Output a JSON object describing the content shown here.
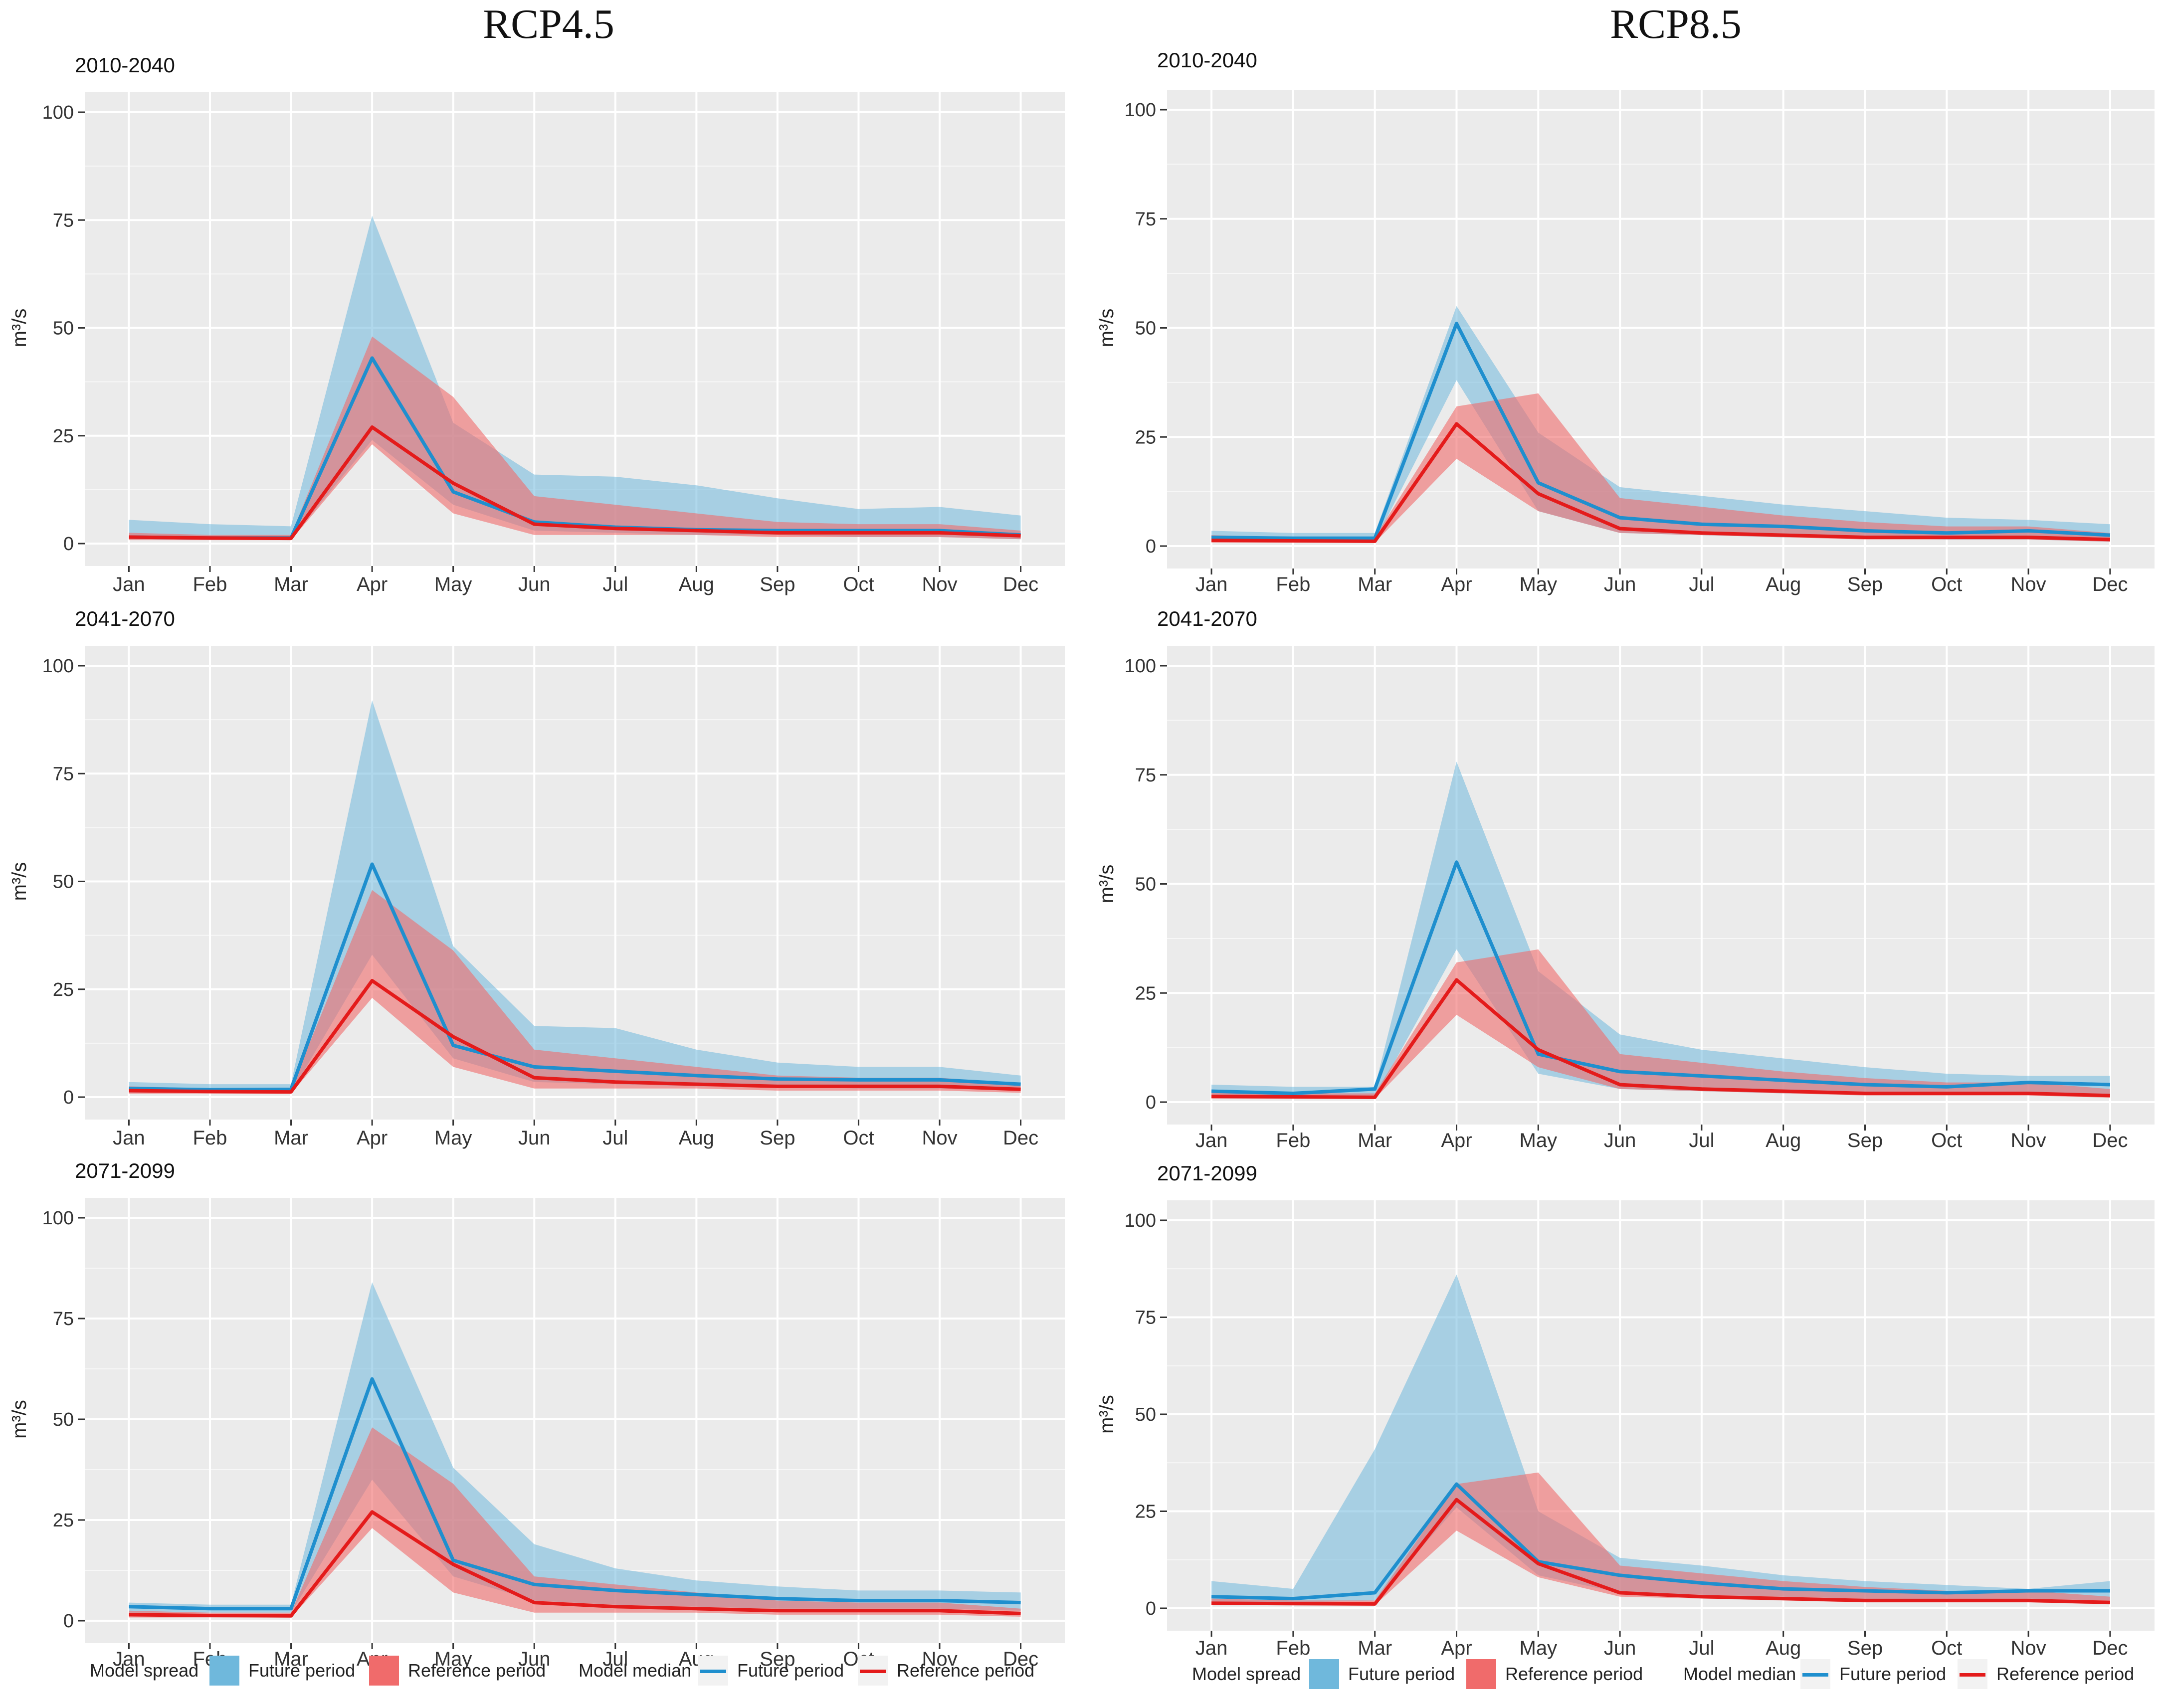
{
  "column_titles": [
    "RCP4.5",
    "RCP8.5"
  ],
  "legend": {
    "spread_title": "Model spread",
    "median_title": "Model median",
    "future_label": "Future period",
    "reference_label": "Reference period"
  },
  "colors": {
    "panel_bg": "#ebebeb",
    "grid": "#ffffff",
    "future_fill": "#6fb8dc",
    "reference_fill": "#f06b6b",
    "future_line": "#1f8fce",
    "reference_line": "#e41b1b"
  },
  "chart_data": [
    {
      "type": "area",
      "scenario": "RCP4.5",
      "title": "2010-2040",
      "ylabel": "m³/s",
      "ylim": [
        0,
        100
      ],
      "yticks": [
        0,
        25,
        50,
        75,
        100
      ],
      "categories": [
        "Jan",
        "Feb",
        "Mar",
        "Apr",
        "May",
        "Jun",
        "Jul",
        "Aug",
        "Sep",
        "Oct",
        "Nov",
        "Dec"
      ],
      "series": [
        {
          "name": "Future period spread",
          "kind": "band",
          "lower": [
            1,
            1,
            1,
            24,
            9,
            3,
            2.5,
            2,
            2,
            1.5,
            1.5,
            1
          ],
          "upper": [
            5.5,
            4.5,
            4,
            76,
            28,
            16,
            15.5,
            13.5,
            10.5,
            8,
            8.5,
            6.5
          ]
        },
        {
          "name": "Reference period spread",
          "kind": "band",
          "lower": [
            0.8,
            0.8,
            0.8,
            23,
            7,
            2,
            2,
            2,
            1.5,
            1.5,
            1.5,
            1
          ],
          "upper": [
            2.5,
            2,
            2,
            48,
            34,
            11,
            9,
            7,
            5,
            4.5,
            4.5,
            3
          ]
        },
        {
          "name": "Future period median",
          "kind": "line",
          "values": [
            1.5,
            1.3,
            1.3,
            43,
            12,
            5,
            3.8,
            3.2,
            3,
            3,
            3,
            2
          ]
        },
        {
          "name": "Reference period median",
          "kind": "line",
          "values": [
            1.5,
            1.3,
            1.2,
            27,
            14,
            4.5,
            3.5,
            3,
            2.5,
            2.5,
            2.5,
            1.8
          ]
        }
      ]
    },
    {
      "type": "area",
      "scenario": "RCP4.5",
      "title": "2041-2070",
      "ylabel": "m³/s",
      "ylim": [
        0,
        100
      ],
      "yticks": [
        0,
        25,
        50,
        75,
        100
      ],
      "categories": [
        "Jan",
        "Feb",
        "Mar",
        "Apr",
        "May",
        "Jun",
        "Jul",
        "Aug",
        "Sep",
        "Oct",
        "Nov",
        "Dec"
      ],
      "series": [
        {
          "name": "Future period spread",
          "kind": "band",
          "lower": [
            1,
            1,
            1,
            33,
            9,
            3.5,
            3,
            2.5,
            2.5,
            2,
            2,
            1.5
          ],
          "upper": [
            3.5,
            3,
            3,
            92,
            35,
            16.5,
            16,
            11,
            8,
            7,
            7,
            5
          ]
        },
        {
          "name": "Reference period spread",
          "kind": "band",
          "lower": [
            0.8,
            0.8,
            0.8,
            23,
            7,
            2,
            2,
            2,
            1.5,
            1.5,
            1.5,
            1
          ],
          "upper": [
            2.5,
            2,
            2,
            48,
            34,
            11,
            9,
            7,
            5,
            4.5,
            4.5,
            3
          ]
        },
        {
          "name": "Future period median",
          "kind": "line",
          "values": [
            2,
            1.7,
            1.8,
            54,
            12,
            7,
            6,
            5,
            4.2,
            4,
            4,
            3
          ]
        },
        {
          "name": "Reference period median",
          "kind": "line",
          "values": [
            1.5,
            1.3,
            1.2,
            27,
            14,
            4.5,
            3.5,
            3,
            2.5,
            2.5,
            2.5,
            1.8
          ]
        }
      ]
    },
    {
      "type": "area",
      "scenario": "RCP4.5",
      "title": "2071-2099",
      "ylabel": "m³/s",
      "ylim": [
        0,
        100
      ],
      "yticks": [
        0,
        25,
        50,
        75,
        100
      ],
      "categories": [
        "Jan",
        "Feb",
        "Mar",
        "Apr",
        "May",
        "Jun",
        "Jul",
        "Aug",
        "Sep",
        "Oct",
        "Nov",
        "Dec"
      ],
      "series": [
        {
          "name": "Future period spread",
          "kind": "band",
          "lower": [
            2,
            2,
            2,
            35,
            11,
            5,
            4,
            3.5,
            3,
            3,
            3,
            2.5
          ],
          "upper": [
            4.5,
            4,
            4,
            84,
            38,
            19,
            13,
            10,
            8.5,
            7.5,
            7.5,
            7
          ]
        },
        {
          "name": "Reference period spread",
          "kind": "band",
          "lower": [
            0.8,
            0.8,
            0.8,
            23,
            7,
            2,
            2,
            2,
            1.5,
            1.5,
            1.5,
            1
          ],
          "upper": [
            2.5,
            2,
            2,
            48,
            34,
            11,
            9,
            7,
            5,
            4.5,
            4.5,
            3
          ]
        },
        {
          "name": "Future period median",
          "kind": "line",
          "values": [
            3.5,
            3,
            3,
            60,
            15,
            9,
            7.5,
            6.5,
            5.5,
            5,
            5,
            4.5
          ]
        },
        {
          "name": "Reference period median",
          "kind": "line",
          "values": [
            1.5,
            1.3,
            1.2,
            27,
            14,
            4.5,
            3.5,
            3,
            2.5,
            2.5,
            2.5,
            1.8
          ]
        }
      ]
    },
    {
      "type": "area",
      "scenario": "RCP8.5",
      "title": "2010-2040",
      "ylabel": "m³/s",
      "ylim": [
        0,
        100
      ],
      "yticks": [
        0,
        25,
        50,
        75,
        100
      ],
      "categories": [
        "Jan",
        "Feb",
        "Mar",
        "Apr",
        "May",
        "Jun",
        "Jul",
        "Aug",
        "Sep",
        "Oct",
        "Nov",
        "Dec"
      ],
      "series": [
        {
          "name": "Future period spread",
          "kind": "band",
          "lower": [
            1,
            1,
            1,
            38,
            8,
            3,
            2.5,
            2,
            2,
            1.5,
            1.5,
            1
          ],
          "upper": [
            3.5,
            3,
            3,
            55,
            26,
            13.5,
            11.5,
            9.5,
            8,
            6.5,
            6,
            5
          ]
        },
        {
          "name": "Reference period spread",
          "kind": "band",
          "lower": [
            0.8,
            0.8,
            0.8,
            20,
            8,
            3,
            2.5,
            2,
            1.5,
            1.5,
            1.5,
            1
          ],
          "upper": [
            2.5,
            2,
            2,
            32,
            35,
            11,
            9,
            7,
            5.5,
            4.5,
            4.5,
            3
          ]
        },
        {
          "name": "Future period median",
          "kind": "line",
          "values": [
            2,
            1.8,
            1.8,
            51,
            14.5,
            6.5,
            5,
            4.5,
            3.5,
            3,
            3.5,
            2.5
          ]
        },
        {
          "name": "Reference period median",
          "kind": "line",
          "values": [
            1.3,
            1.2,
            1.1,
            28,
            12,
            4,
            3,
            2.5,
            2,
            2,
            2,
            1.5
          ]
        }
      ]
    },
    {
      "type": "area",
      "scenario": "RCP8.5",
      "title": "2041-2070",
      "ylabel": "m³/s",
      "ylim": [
        0,
        100
      ],
      "yticks": [
        0,
        25,
        50,
        75,
        100
      ],
      "categories": [
        "Jan",
        "Feb",
        "Mar",
        "Apr",
        "May",
        "Jun",
        "Jul",
        "Aug",
        "Sep",
        "Oct",
        "Nov",
        "Dec"
      ],
      "series": [
        {
          "name": "Future period spread",
          "kind": "band",
          "lower": [
            1,
            1,
            1,
            35,
            6.5,
            3,
            2.5,
            2,
            2,
            2,
            2,
            1.5
          ],
          "upper": [
            4,
            3.5,
            3.5,
            78,
            30,
            15.5,
            12,
            10,
            8,
            6.5,
            6,
            6
          ]
        },
        {
          "name": "Reference period spread",
          "kind": "band",
          "lower": [
            0.8,
            0.8,
            0.8,
            20,
            8,
            3,
            2.5,
            2,
            1.5,
            1.5,
            1.5,
            1
          ],
          "upper": [
            2.5,
            2,
            2,
            32,
            35,
            11,
            9,
            7,
            5.5,
            4.5,
            4.5,
            3
          ]
        },
        {
          "name": "Future period median",
          "kind": "line",
          "values": [
            2.5,
            2,
            3,
            55,
            11,
            7,
            6,
            5,
            4,
            3.5,
            4.5,
            4
          ]
        },
        {
          "name": "Reference period median",
          "kind": "line",
          "values": [
            1.3,
            1.2,
            1.1,
            28,
            12,
            4,
            3,
            2.5,
            2,
            2,
            2,
            1.5
          ]
        }
      ]
    },
    {
      "type": "area",
      "scenario": "RCP8.5",
      "title": "2071-2099",
      "ylabel": "m³/s",
      "ylim": [
        0,
        100
      ],
      "yticks": [
        0,
        25,
        50,
        75,
        100
      ],
      "categories": [
        "Jan",
        "Feb",
        "Mar",
        "Apr",
        "May",
        "Jun",
        "Jul",
        "Aug",
        "Sep",
        "Oct",
        "Nov",
        "Dec"
      ],
      "series": [
        {
          "name": "Future period spread",
          "kind": "band",
          "lower": [
            1.5,
            1.5,
            2,
            26,
            8.5,
            4,
            3.5,
            3,
            2.5,
            2.5,
            2.5,
            2
          ],
          "upper": [
            7,
            5,
            41,
            86,
            25,
            13,
            11,
            8.5,
            7,
            6,
            5,
            7
          ]
        },
        {
          "name": "Reference period spread",
          "kind": "band",
          "lower": [
            0.8,
            0.8,
            0.8,
            20,
            8,
            3,
            2.5,
            2,
            1.5,
            1.5,
            1.5,
            1
          ],
          "upper": [
            2.5,
            2,
            2,
            32,
            35,
            11,
            9,
            7,
            5.5,
            4.5,
            4.5,
            3
          ]
        },
        {
          "name": "Future period median",
          "kind": "line",
          "values": [
            3,
            2.5,
            4,
            32,
            12,
            8.5,
            6.5,
            5,
            4.5,
            4,
            4.5,
            4.5
          ]
        },
        {
          "name": "Reference period median",
          "kind": "line",
          "values": [
            1.3,
            1.2,
            1.1,
            28,
            11.5,
            4,
            3,
            2.5,
            2,
            2,
            2,
            1.5
          ]
        }
      ]
    }
  ]
}
